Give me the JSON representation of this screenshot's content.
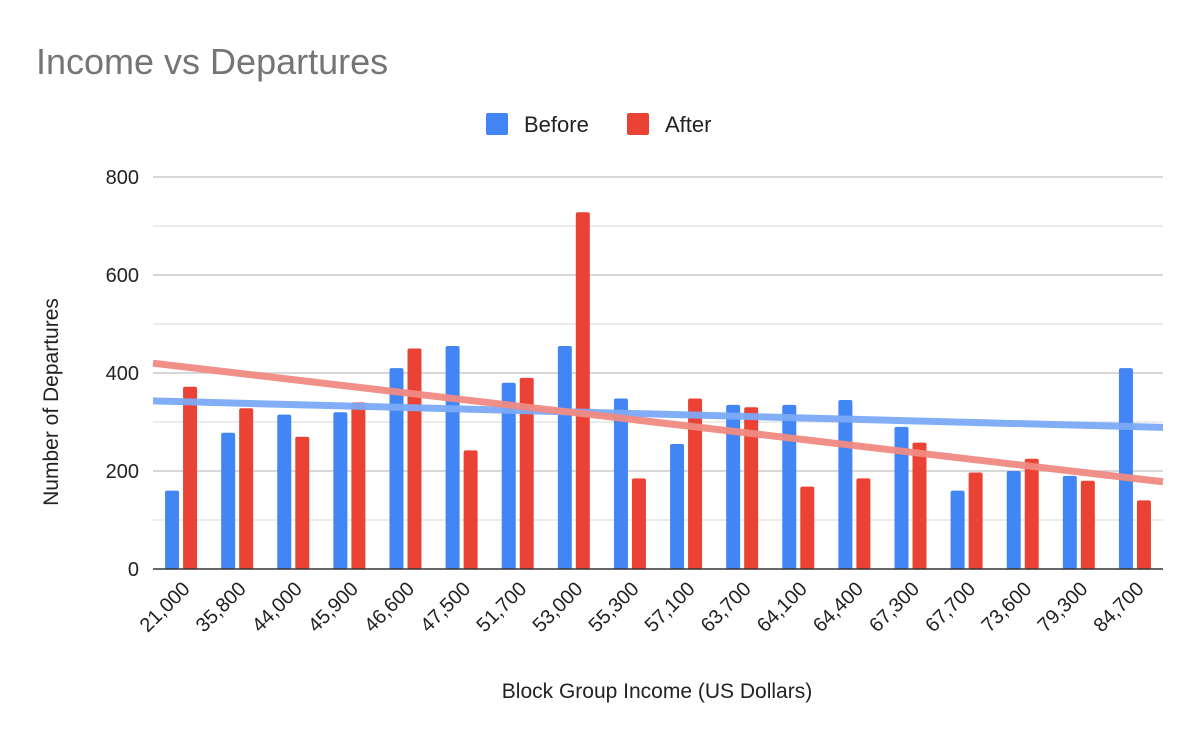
{
  "chart_data": {
    "type": "bar",
    "title": "Income vs Departures",
    "xlabel": "Block Group Income (US Dollars)",
    "ylabel": "Number of Departures",
    "categories": [
      "21,000",
      "35,800",
      "44,000",
      "45,900",
      "46,600",
      "47,500",
      "51,700",
      "53,000",
      "55,300",
      "57,100",
      "63,700",
      "64,100",
      "64,400",
      "67,300",
      "67,700",
      "73,600",
      "79,300",
      "84,700"
    ],
    "series": [
      {
        "name": "Before",
        "color": "#4285f4",
        "values": [
          160,
          278,
          315,
          320,
          410,
          455,
          380,
          455,
          348,
          255,
          335,
          335,
          345,
          290,
          160,
          200,
          190,
          410
        ]
      },
      {
        "name": "After",
        "color": "#ea4335",
        "values": [
          372,
          328,
          270,
          340,
          450,
          242,
          390,
          728,
          185,
          348,
          330,
          168,
          185,
          258,
          197,
          225,
          180,
          140
        ]
      }
    ],
    "trendlines": [
      {
        "series": "Before",
        "color": "#7baaf7",
        "start": 343,
        "end": 289
      },
      {
        "series": "After",
        "color": "#f08a82",
        "start": 420,
        "end": 178
      }
    ],
    "ylim": [
      0,
      800
    ],
    "yticks": [
      "0",
      "200",
      "400",
      "600",
      "800"
    ],
    "grid": true,
    "legend": "top"
  }
}
